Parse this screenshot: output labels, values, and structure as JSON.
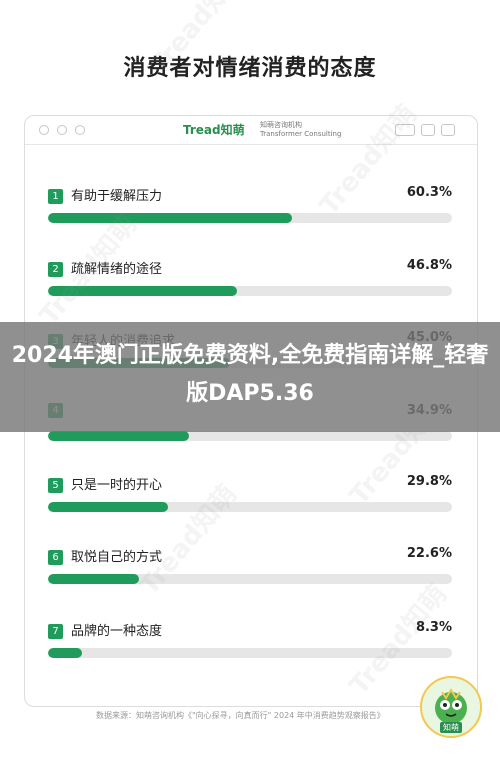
{
  "page_title": "消费者对情绪消费的态度",
  "brand": {
    "logo_text": "Tread知萌",
    "sub_text": "知萌咨询机构",
    "sub_text_en": "Transformer Consulting"
  },
  "chart_data": {
    "type": "bar",
    "orientation": "horizontal",
    "title": "消费者对情绪消费的态度",
    "categories": [
      "有助于缓解压力",
      "疏解情绪的途径",
      "年轻人的消费追求",
      "",
      "只是一时的开心",
      "取悦自己的方式",
      "品牌的一种态度"
    ],
    "values": [
      60.3,
      46.8,
      45.0,
      34.9,
      29.8,
      22.6,
      8.3
    ],
    "value_labels": [
      "60.3%",
      "46.8%",
      "45.0%",
      "34.9%",
      "29.8%",
      "22.6%",
      "8.3%"
    ],
    "ranks": [
      "1",
      "2",
      "3",
      "4",
      "5",
      "6",
      "7"
    ],
    "xlim": [
      0,
      100
    ],
    "unit": "%",
    "bar_color": "#1f9c5c",
    "track_color": "#e6e6e6"
  },
  "source": "数据来源：知萌咨询机构《\"向心探寻，向真而行\" 2024 年中消费趋势观察报告》",
  "overlay_banner": "2024年澳门正版免费资料,全免费指南详解_轻奢版DAP5.36",
  "mascot_label": "知萌"
}
